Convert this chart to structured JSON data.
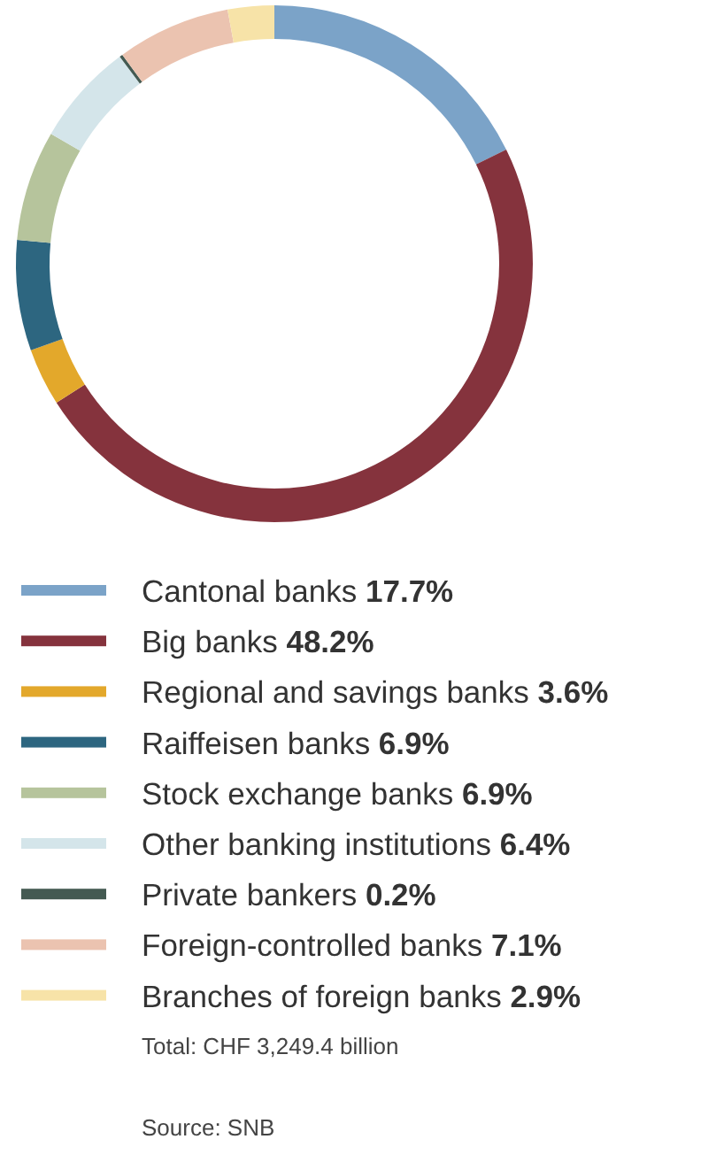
{
  "chart_data": {
    "type": "donut",
    "categories": [
      "Cantonal banks",
      "Big banks",
      "Regional and savings banks",
      "Raiffeisen banks",
      "Stock exchange banks",
      "Other banking institutions",
      "Private bankers",
      "Foreign-controlled banks",
      "Branches of foreign banks"
    ],
    "values": [
      17.7,
      48.2,
      3.6,
      6.9,
      6.9,
      6.4,
      0.2,
      7.1,
      2.9
    ],
    "value_labels": [
      "17.7%",
      "48.2%",
      "3.6%",
      "6.9%",
      "6.9%",
      "6.4%",
      "0.2%",
      "7.1%",
      "2.9%"
    ],
    "colors": [
      "#7ba3c8",
      "#85333d",
      "#e3a82b",
      "#2d6680",
      "#b6c49c",
      "#d4e5ea",
      "#445a52",
      "#ebc3b0",
      "#f7e3a8"
    ],
    "legend": "bottom",
    "annotations": [
      "Total: CHF 3,249.4 billion",
      "Source: SNB"
    ]
  }
}
